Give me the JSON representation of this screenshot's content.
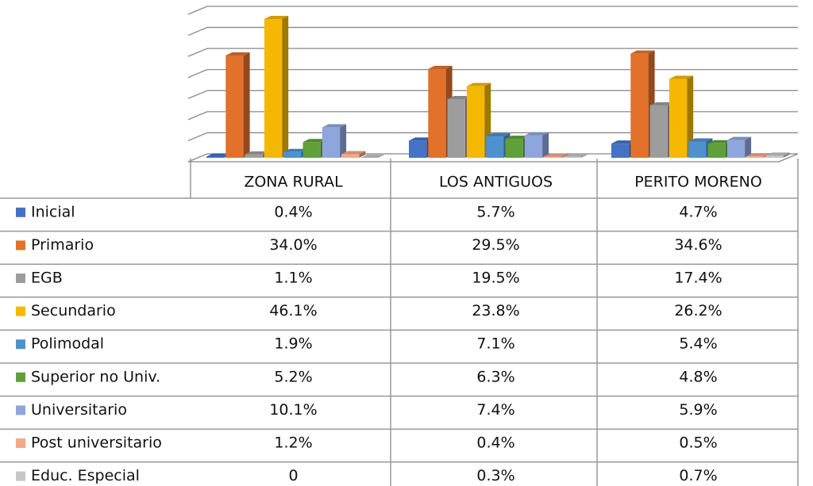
{
  "chart_data": {
    "type": "bar3d",
    "categories": [
      "ZONA RURAL",
      "LOS ANTIGUOS",
      "PERITO MORENO"
    ],
    "ylim": [
      0,
      49
    ],
    "yticks": [
      0,
      7,
      14,
      21,
      28,
      35,
      42,
      49
    ],
    "grid": true,
    "series": [
      {
        "name": "Inicial",
        "color": "#4472c4",
        "values": [
          0.4,
          5.7,
          4.7
        ],
        "value_labels": [
          "0.4%",
          "5.7%",
          "4.7%"
        ]
      },
      {
        "name": "Primario",
        "color": "#e2712b",
        "values": [
          34.0,
          29.5,
          34.6
        ],
        "value_labels": [
          "34.0%",
          "29.5%",
          "34.6%"
        ]
      },
      {
        "name": "EGB",
        "color": "#9d9d9d",
        "values": [
          1.1,
          19.5,
          17.4
        ],
        "value_labels": [
          "1.1%",
          "19.5%",
          "17.4%"
        ]
      },
      {
        "name": "Secundario",
        "color": "#f5b800",
        "values": [
          46.1,
          23.8,
          26.2
        ],
        "value_labels": [
          "46.1%",
          "23.8%",
          "26.2%"
        ]
      },
      {
        "name": "Polimodal",
        "color": "#4d91cf",
        "values": [
          1.9,
          7.1,
          5.4
        ],
        "value_labels": [
          "1.9%",
          "7.1%",
          "5.4%"
        ]
      },
      {
        "name": "Superior no Univ.",
        "color": "#5fa03a",
        "values": [
          5.2,
          6.3,
          4.8
        ],
        "value_labels": [
          "5.2%",
          "6.3%",
          "4.8%"
        ]
      },
      {
        "name": "Universitario",
        "color": "#8fa6dc",
        "values": [
          10.1,
          7.4,
          5.9
        ],
        "value_labels": [
          "10.1%",
          "7.4%",
          "5.9%"
        ]
      },
      {
        "name": "Post universitario",
        "color": "#f2a98a",
        "values": [
          1.2,
          0.4,
          0.5
        ],
        "value_labels": [
          "1.2%",
          "0.4%",
          "0.5%"
        ]
      },
      {
        "name": "Educ. Especial",
        "color": "#c6c6c6",
        "values": [
          0,
          0.3,
          0.7
        ],
        "value_labels": [
          "0",
          "0.3%",
          "0.7%"
        ]
      }
    ]
  }
}
